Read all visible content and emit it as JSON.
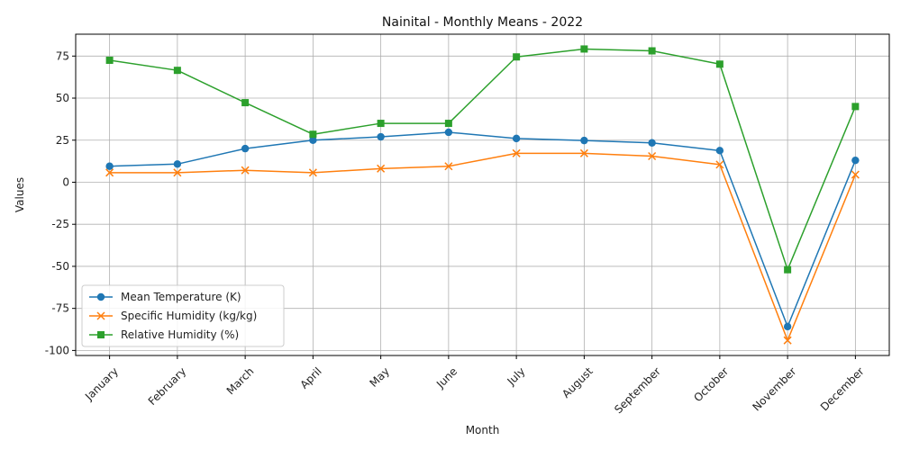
{
  "chart_data": {
    "type": "line",
    "title": "Nainital - Monthly Means - 2022",
    "xlabel": "Month",
    "ylabel": "Values",
    "categories": [
      "January",
      "February",
      "March",
      "April",
      "May",
      "June",
      "July",
      "August",
      "September",
      "October",
      "November",
      "December"
    ],
    "ylim": [
      -103,
      88
    ],
    "yticks": [
      -100,
      -75,
      -50,
      -25,
      0,
      25,
      50,
      75
    ],
    "grid": true,
    "legend_position": "lower-left",
    "series": [
      {
        "name": "Mean Temperature (K)",
        "color": "#1f77b4",
        "marker": "circle",
        "values": [
          9.5,
          10.8,
          20.0,
          25.0,
          27.0,
          29.7,
          26.0,
          24.8,
          23.4,
          18.8,
          -85.8,
          13.0
        ]
      },
      {
        "name": "Specific Humidity (kg/kg)",
        "color": "#ff7f0e",
        "marker": "x",
        "values": [
          5.7,
          5.7,
          7.1,
          5.7,
          8.1,
          9.5,
          17.2,
          17.2,
          15.5,
          10.5,
          -94.0,
          4.5
        ]
      },
      {
        "name": "Relative Humidity (%)",
        "color": "#2ca02c",
        "marker": "square",
        "values": [
          72.5,
          66.5,
          47.3,
          28.5,
          35.0,
          35.0,
          74.5,
          79.2,
          78.1,
          70.2,
          -52.0,
          45.0
        ]
      }
    ]
  }
}
